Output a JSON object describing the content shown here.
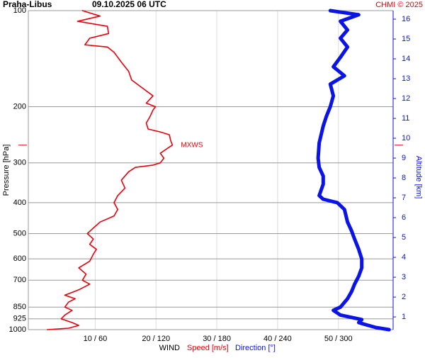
{
  "chart_data": {
    "type": "profile",
    "title": "Praha-Libus",
    "subtitle": "09.10.2025 06 UTC",
    "credit": "CHMI © 2025",
    "ylabel": "Pressure [hPa]",
    "y2label": "Altitude [km]",
    "xlabel": "WIND",
    "xlabel_speed": "Speed [m/s]",
    "xlabel_direction": "Direction [°]",
    "log_y": true,
    "grid": true,
    "ylim": [
      1000,
      100
    ],
    "yticks": [
      100,
      200,
      300,
      400,
      500,
      600,
      700,
      850,
      925,
      1000
    ],
    "y2lim": [
      0.36,
      16.43
    ],
    "y2ticks": [
      1,
      2,
      3,
      4,
      5,
      6,
      7,
      8,
      9,
      10,
      11,
      12,
      13,
      14,
      15,
      16
    ],
    "xlim": [
      -1,
      59
    ],
    "x2lim": [
      -6,
      354
    ],
    "xticks": [
      {
        "value": 10,
        "label": "10 / 60"
      },
      {
        "value": 20,
        "label": "20 / 120"
      },
      {
        "value": 30,
        "label": "30 / 180"
      },
      {
        "value": 40,
        "label": "40 / 240"
      },
      {
        "value": 50,
        "label": "50 / 300"
      }
    ],
    "mxws": {
      "label": "MXWS",
      "pressure": 264
    },
    "series": [
      {
        "name": "Speed [m/s]",
        "color": "#e8000b",
        "axis": "x",
        "pressure": [
          1000,
          990,
          970,
          950,
          925,
          900,
          870,
          850,
          820,
          800,
          780,
          750,
          720,
          700,
          670,
          640,
          610,
          580,
          560,
          540,
          520,
          500,
          480,
          460,
          440,
          420,
          400,
          380,
          360,
          340,
          320,
          310,
          305,
          300,
          290,
          280,
          270,
          264,
          255,
          245,
          240,
          235,
          225,
          215,
          205,
          200,
          195,
          185,
          175,
          165,
          155,
          145,
          135,
          130,
          128,
          122,
          118,
          112,
          108,
          104,
          100
        ],
        "values": [
          2.1,
          5.6,
          7.3,
          6.2,
          4.4,
          5,
          6.2,
          5,
          5.6,
          6.7,
          5,
          7.3,
          9.1,
          7.9,
          8.5,
          7.3,
          9.1,
          9.7,
          10.2,
          9.1,
          9.7,
          8.7,
          9.7,
          10.8,
          13.1,
          13.7,
          13.1,
          13.7,
          14.9,
          14.3,
          15.5,
          16.6,
          19.5,
          20.7,
          21.3,
          20.7,
          21.9,
          22.7,
          22.4,
          22.2,
          20.7,
          18.7,
          18.4,
          19,
          19.5,
          19.9,
          18.4,
          19.5,
          17.8,
          16,
          15.5,
          14.3,
          13.1,
          12,
          8.3,
          9.1,
          12.2,
          12,
          7.1,
          10.8,
          7.9
        ]
      },
      {
        "name": "Direction [°]",
        "color": "#0a14e6",
        "axis": "x2",
        "pressure": [
          1000,
          985,
          965,
          950,
          930,
          900,
          870,
          850,
          800,
          760,
          720,
          680,
          640,
          600,
          560,
          520,
          490,
          460,
          420,
          400,
          390,
          380,
          350,
          330,
          310,
          290,
          260,
          230,
          215,
          200,
          185,
          170,
          160,
          150,
          140,
          130,
          122,
          115,
          108,
          103,
          100
        ],
        "values": [
          350,
          337,
          327,
          320,
          323,
          302,
          295,
          302,
          309,
          313,
          316,
          320,
          323,
          323,
          320,
          316,
          313,
          309,
          306,
          299,
          285,
          281,
          285,
          285,
          281,
          280,
          281,
          285,
          288,
          292,
          295,
          292,
          306,
          295,
          302,
          309,
          302,
          309,
          302,
          320,
          292
        ]
      }
    ]
  }
}
